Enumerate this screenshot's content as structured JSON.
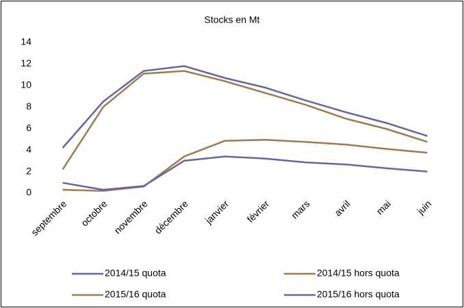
{
  "chart_data": {
    "type": "line",
    "title": "Stocks en Mt",
    "categories": [
      "septembre",
      "octobre",
      "novembre",
      "décembre",
      "janvier",
      "février",
      "mars",
      "avril",
      "mai",
      "juin"
    ],
    "series": [
      {
        "name": "2014/15 quota",
        "color": "#6464a8",
        "values": [
          4.2,
          8.5,
          11.35,
          11.8,
          10.7,
          9.8,
          8.6,
          7.5,
          6.5,
          5.3
        ]
      },
      {
        "name": "2014/15 hors quota",
        "color": "#a07a4c",
        "values": [
          2.2,
          8.0,
          11.1,
          11.35,
          10.4,
          9.3,
          8.2,
          6.9,
          5.95,
          4.75
        ]
      },
      {
        "name": "2015/16 quota",
        "color": "#a07a4c",
        "values": [
          0.3,
          0.2,
          0.6,
          3.4,
          4.85,
          4.95,
          4.75,
          4.5,
          4.1,
          3.75
        ]
      },
      {
        "name": "2015/16 hors quota",
        "color": "#6464a8",
        "values": [
          0.95,
          0.3,
          0.65,
          3.0,
          3.4,
          3.2,
          2.85,
          2.65,
          2.3,
          2.0
        ]
      }
    ],
    "ylim": [
      0,
      14
    ],
    "yticks": [
      0,
      2,
      4,
      6,
      8,
      10,
      12,
      14
    ],
    "grid": false,
    "legend": "bottom"
  }
}
